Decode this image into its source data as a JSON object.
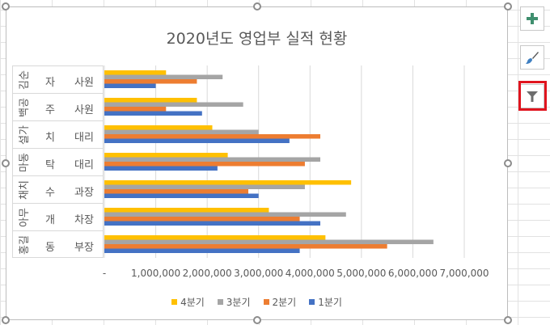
{
  "chart_buttons": {
    "add": {
      "icon": "plus-icon",
      "color": "#3f8f6f"
    },
    "style": {
      "icon": "paintbrush-icon"
    },
    "filter": {
      "icon": "funnel-icon",
      "highlight_color": "#e0141e"
    }
  },
  "chart_data": {
    "type": "bar",
    "orientation": "horizontal",
    "title": "2020년도 영업부 실적 현황",
    "categories": [
      {
        "name_part": "김순",
        "name_last": "자",
        "position": "사원"
      },
      {
        "name_part": "백공",
        "name_last": "주",
        "position": "사원"
      },
      {
        "name_part": "설가",
        "name_last": "치",
        "position": "대리"
      },
      {
        "name_part": "마동",
        "name_last": "탁",
        "position": "대리"
      },
      {
        "name_part": "채치",
        "name_last": "수",
        "position": "과장"
      },
      {
        "name_part": "아무",
        "name_last": "개",
        "position": "차장"
      },
      {
        "name_part": "홍길",
        "name_last": "동",
        "position": "부장"
      }
    ],
    "series": [
      {
        "name": "4분기",
        "color": "#ffc000",
        "values": [
          1200000,
          1800000,
          2100000,
          2400000,
          4800000,
          3200000,
          4300000
        ]
      },
      {
        "name": "3분기",
        "color": "#a5a5a5",
        "values": [
          2300000,
          2700000,
          3000000,
          4200000,
          3900000,
          4700000,
          6400000
        ]
      },
      {
        "name": "2분기",
        "color": "#ed7d31",
        "values": [
          1800000,
          1200000,
          4200000,
          3900000,
          2800000,
          3800000,
          5500000
        ]
      },
      {
        "name": "1분기",
        "color": "#4472c4",
        "values": [
          1000000,
          1900000,
          3600000,
          2200000,
          3000000,
          4200000,
          3800000
        ]
      }
    ],
    "xlim": [
      0,
      7000000
    ],
    "x_ticks": [
      "-",
      "1,000,000",
      "2,000,000",
      "3,000,000",
      "4,000,000",
      "5,000,000",
      "6,000,000",
      "7,000,000"
    ],
    "grid": true,
    "legend": "bottom",
    "legend_order": [
      "4분기",
      "3분기",
      "2분기",
      "1분기"
    ]
  }
}
